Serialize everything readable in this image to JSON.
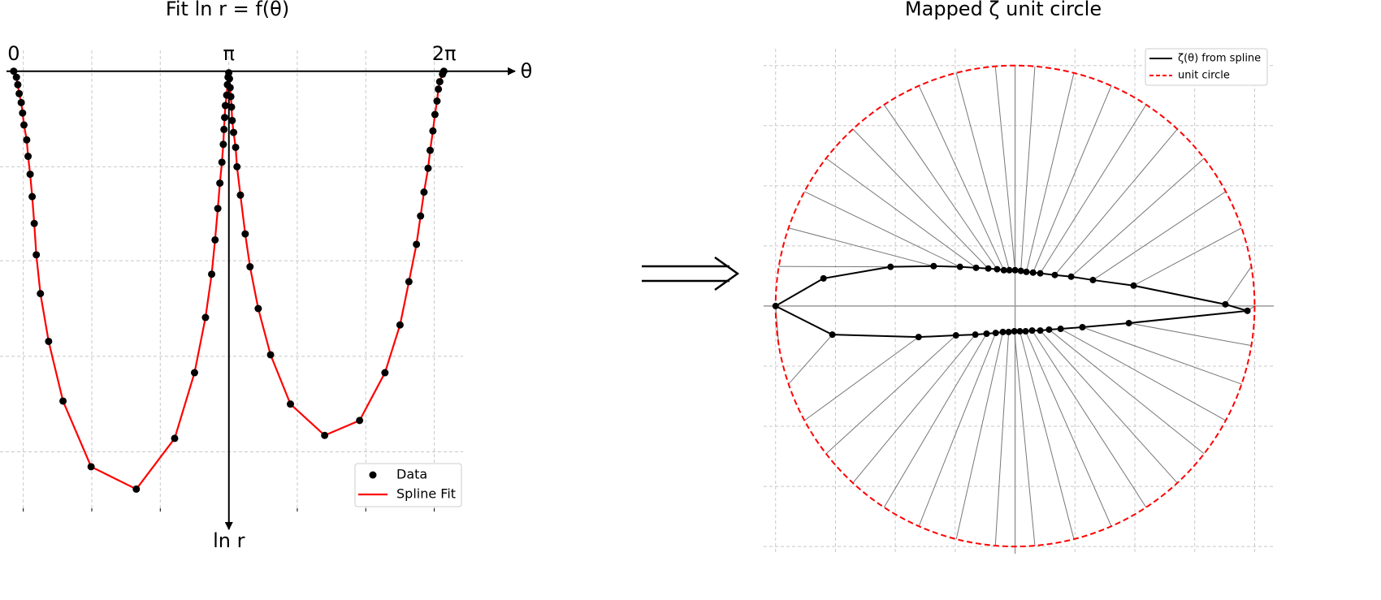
{
  "chart_data": [
    {
      "type": "scatter_fit",
      "title": "Fit ln r = f(θ)",
      "x_label": "θ",
      "y_label": "ln r",
      "theta_labels": [
        {
          "value": 0,
          "label": "0"
        },
        {
          "value": 3.1416,
          "label": "π"
        },
        {
          "value": 6.2832,
          "label": "2π"
        }
      ],
      "xlim": [
        -0.2,
        6.56
      ],
      "ylim": [
        -2.95,
        0.14
      ],
      "xticks": [
        0.14,
        1.14,
        2.14,
        3.14,
        4.14,
        5.14,
        6.14
      ],
      "yticks": [
        -2.55,
        -1.91,
        -1.27,
        -0.64
      ],
      "grid": true,
      "legend": "lower right",
      "series": [
        {
          "name": "Data",
          "color": "#000000",
          "x": [
            0,
            0.04,
            0.06,
            0.08,
            0.11,
            0.13,
            0.15,
            0.19,
            0.21,
            0.24,
            0.27,
            0.3,
            0.33,
            0.39,
            0.51,
            0.72,
            1.13,
            1.79,
            2.35,
            2.64,
            2.8,
            2.89,
            2.94,
            2.98,
            3.01,
            3.04,
            3.06,
            3.07,
            3.08,
            3.09,
            3.11,
            3.12,
            3.13,
            3.14,
            3.15,
            3.16,
            3.17,
            3.18,
            3.19,
            3.21,
            3.24,
            3.26,
            3.31,
            3.38,
            3.45,
            3.57,
            3.75,
            4.04,
            4.54,
            5.05,
            5.42,
            5.64,
            5.77,
            5.88,
            5.94,
            5.99,
            6.05,
            6.08,
            6.12,
            6.15,
            6.18,
            6.2,
            6.22,
            6.26,
            6.28
          ],
          "values": [
            0,
            -0.04,
            -0.09,
            -0.15,
            -0.21,
            -0.28,
            -0.36,
            -0.46,
            -0.57,
            -0.69,
            -0.84,
            -1.02,
            -1.23,
            -1.49,
            -1.81,
            -2.21,
            -2.65,
            -2.8,
            -2.46,
            -2.02,
            -1.65,
            -1.36,
            -1.13,
            -0.92,
            -0.75,
            -0.61,
            -0.49,
            -0.39,
            -0.31,
            -0.23,
            -0.16,
            -0.09,
            -0.04,
            -0.01,
            -0.05,
            -0.11,
            -0.17,
            -0.24,
            -0.33,
            -0.41,
            -0.51,
            -0.64,
            -0.83,
            -1.09,
            -1.31,
            -1.59,
            -1.9,
            -2.23,
            -2.44,
            -2.34,
            -2.02,
            -1.7,
            -1.41,
            -1.16,
            -0.97,
            -0.81,
            -0.65,
            -0.53,
            -0.4,
            -0.29,
            -0.2,
            -0.12,
            -0.07,
            -0.02,
            0
          ]
        }
      ],
      "fit": {
        "name": "Spline Fit",
        "color": "#ff0000"
      }
    },
    {
      "type": "mapping",
      "title": "Mapped ζ unit circle",
      "xlim": [
        -1.05,
        1.08
      ],
      "ylim": [
        -1.03,
        1.07
      ],
      "xticks": [
        -1,
        -0.75,
        -0.5,
        -0.25,
        0.25,
        0.5,
        0.75,
        1
      ],
      "yticks": [
        -1,
        -0.75,
        -0.5,
        -0.25,
        0.25,
        0.5,
        0.75,
        1
      ],
      "grid": true,
      "legend": "upper right",
      "series": [
        {
          "name": "ζ(θ) from spline",
          "color": "#000000",
          "x": [
            0.97,
            0.878,
            0.495,
            0.325,
            0.234,
            0.166,
            0.105,
            0.075,
            0.047,
            0.024,
            0,
            -0.024,
            -0.047,
            -0.075,
            -0.112,
            -0.163,
            -0.23,
            -0.34,
            -0.52,
            -0.8,
            -1.0,
            -0.763,
            -0.403,
            -0.247,
            -0.166,
            -0.119,
            -0.081,
            -0.051,
            -0.027,
            -0.003,
            0.02,
            0.044,
            0.071,
            0.105,
            0.142,
            0.19,
            0.281,
            0.475
          ],
          "values": [
            -0.02,
            0.007,
            0.085,
            0.108,
            0.122,
            0.129,
            0.136,
            0.139,
            0.142,
            0.146,
            0.149,
            0.149,
            0.149,
            0.153,
            0.156,
            0.159,
            0.163,
            0.166,
            0.163,
            0.115,
            0,
            -0.119,
            -0.129,
            -0.122,
            -0.119,
            -0.115,
            -0.112,
            -0.108,
            -0.108,
            -0.105,
            -0.105,
            -0.105,
            -0.102,
            -0.102,
            -0.098,
            -0.095,
            -0.088,
            -0.071
          ]
        }
      ],
      "circle": {
        "name": "unit circle",
        "color": "#ff0000",
        "radius": 1
      }
    }
  ]
}
